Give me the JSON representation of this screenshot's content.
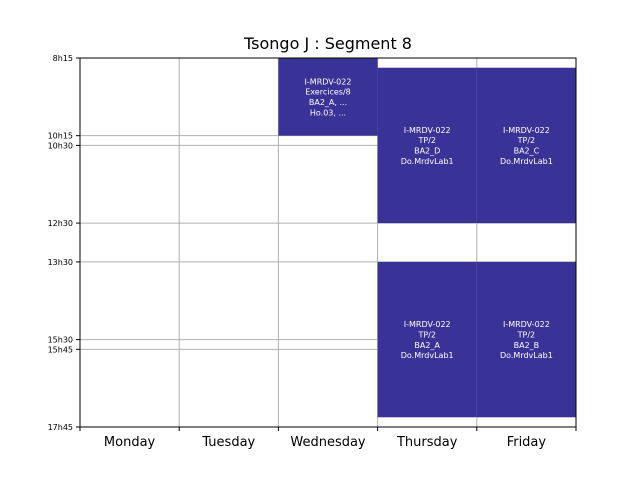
{
  "chart_data": {
    "type": "table",
    "title": "Tsongo J : Segment 8",
    "days": [
      "Monday",
      "Tuesday",
      "Wednesday",
      "Thursday",
      "Friday"
    ],
    "time_ticks": [
      {
        "label": "8h15",
        "hour": 8.25
      },
      {
        "label": "10h15",
        "hour": 10.25
      },
      {
        "label": "10h30",
        "hour": 10.5
      },
      {
        "label": "12h30",
        "hour": 12.5
      },
      {
        "label": "13h30",
        "hour": 13.5
      },
      {
        "label": "15h30",
        "hour": 15.5
      },
      {
        "label": "15h45",
        "hour": 15.75
      },
      {
        "label": "17h45",
        "hour": 17.75
      }
    ],
    "ylim": [
      8.25,
      17.75
    ],
    "grid": true,
    "event_color": "#3a3397",
    "events": [
      {
        "day": 2,
        "start": 8.25,
        "end": 10.25,
        "lines": [
          "I-MRDV-022",
          "Exercices/8",
          "BA2_A, ...",
          "Ho.03, ..."
        ]
      },
      {
        "day": 3,
        "start": 8.5,
        "end": 12.5,
        "lines": [
          "I-MRDV-022",
          "TP/2",
          "BA2_D",
          "Do.MrdvLab1"
        ]
      },
      {
        "day": 4,
        "start": 8.5,
        "end": 12.5,
        "lines": [
          "I-MRDV-022",
          "TP/2",
          "BA2_C",
          "Do.MrdvLab1"
        ]
      },
      {
        "day": 3,
        "start": 13.5,
        "end": 17.5,
        "lines": [
          "I-MRDV-022",
          "TP/2",
          "BA2_A",
          "Do.MrdvLab1"
        ]
      },
      {
        "day": 4,
        "start": 13.5,
        "end": 17.5,
        "lines": [
          "I-MRDV-022",
          "TP/2",
          "BA2_B",
          "Do.MrdvLab1"
        ]
      }
    ]
  }
}
